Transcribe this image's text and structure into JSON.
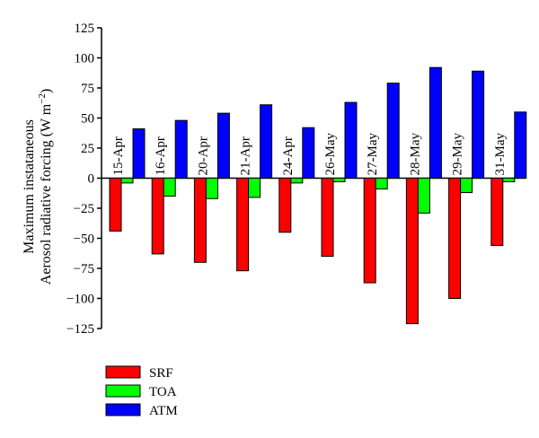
{
  "chart_data": {
    "type": "bar",
    "ylabel_line1": "Maximum instataneous",
    "ylabel_line2": "Aerosol radiative forcing (W m",
    "ylabel_sup": "−2",
    "ylabel_close": ")",
    "ylim": [
      -125,
      125
    ],
    "yticks": [
      125,
      100,
      75,
      50,
      25,
      0,
      -25,
      -50,
      -75,
      -100,
      -125
    ],
    "ytick_labels": [
      "125",
      "100",
      "75",
      "50",
      "25",
      "0",
      "−25",
      "−50",
      "−75",
      "−100",
      "−125"
    ],
    "categories": [
      "15-Apr",
      "16-Apr",
      "20-Apr",
      "21-Apr",
      "24-Apr",
      "26-May",
      "27-May",
      "28-May",
      "29-May",
      "31-May"
    ],
    "series": [
      {
        "name": "SRF",
        "color": "#ff0000",
        "values": [
          -44,
          -63,
          -70,
          -77,
          -45,
          -65,
          -87,
          -121,
          -100,
          -56
        ]
      },
      {
        "name": "TOA",
        "color": "#00ff00",
        "values": [
          -4,
          -15,
          -17,
          -16,
          -4,
          -3,
          -9,
          -29,
          -12,
          -3
        ]
      },
      {
        "name": "ATM",
        "color": "#0000ff",
        "values": [
          41,
          48,
          54,
          61,
          42,
          63,
          79,
          92,
          89,
          55
        ]
      }
    ],
    "legend_position": "bottom-left",
    "grid": false
  }
}
